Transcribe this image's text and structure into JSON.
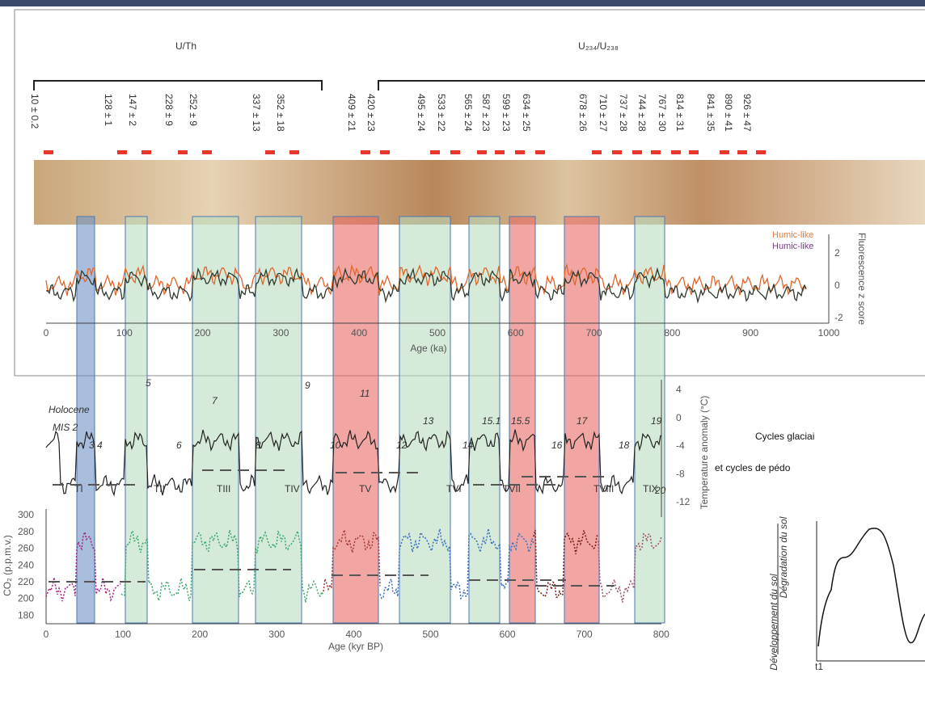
{
  "header_labels": {
    "uth": "U/Th",
    "useries": "U₂₃₄/U₂₃₈"
  },
  "sample_ages": [
    "10 ± 0.2",
    "128 ± 1",
    "147 ± 2",
    "228 ± 9",
    "252 ± 9",
    "337 ± 13",
    "352 ± 18",
    "409 ± 21",
    "420 ± 23",
    "495 ± 24",
    "533 ± 22",
    "565 ± 24",
    "587 ± 23",
    "599 ± 23",
    "634 ± 25",
    "678 ± 26",
    "710 ± 27",
    "737 ± 28",
    "744 ± 28",
    "767 ± 30",
    "814 ± 31",
    "841 ± 35",
    "890 ± 41",
    "926 ± 47"
  ],
  "fluorescence": {
    "legend": [
      "Humic-like",
      "Humic-like"
    ],
    "x_ticks": [
      "0",
      "100",
      "200",
      "300",
      "400",
      "500",
      "600",
      "700",
      "800",
      "900",
      "1000"
    ],
    "y_ticks": [
      "2",
      "0",
      "-2"
    ],
    "y_label": "Fluorescence z score",
    "x_label": "Age (ka)"
  },
  "climate": {
    "stage_labels": [
      "Holocene",
      "MIS 2",
      "3 4",
      "5",
      "6",
      "7",
      "8",
      "9",
      "10",
      "11",
      "12",
      "13",
      "14",
      "15.1",
      "15.5",
      "16",
      "17",
      "18",
      "19",
      "20"
    ],
    "terminations": [
      "TI",
      "TII",
      "TIII",
      "TIV",
      "TV",
      "TVI",
      "TVII",
      "TVIII",
      "TIX"
    ],
    "temp_ticks": [
      "4",
      "0",
      "-4",
      "-8",
      "-12"
    ],
    "temp_label": "Temperature anomaly (°C)",
    "co2_ticks": [
      "300",
      "280",
      "260",
      "240",
      "220",
      "200",
      "180"
    ],
    "co2_label": "CO₂ (p.p.m.v.)",
    "x_ticks": [
      "0",
      "100",
      "200",
      "300",
      "400",
      "500",
      "600",
      "700",
      "800"
    ],
    "x_label": "Age (kyr BP)"
  },
  "right": {
    "title_lines": [
      "Cycles glaciai",
      "et cycles de pédo"
    ],
    "y_up": "Dégradation du sol",
    "y_down": "Développement du sol",
    "t_label": "t1"
  }
}
